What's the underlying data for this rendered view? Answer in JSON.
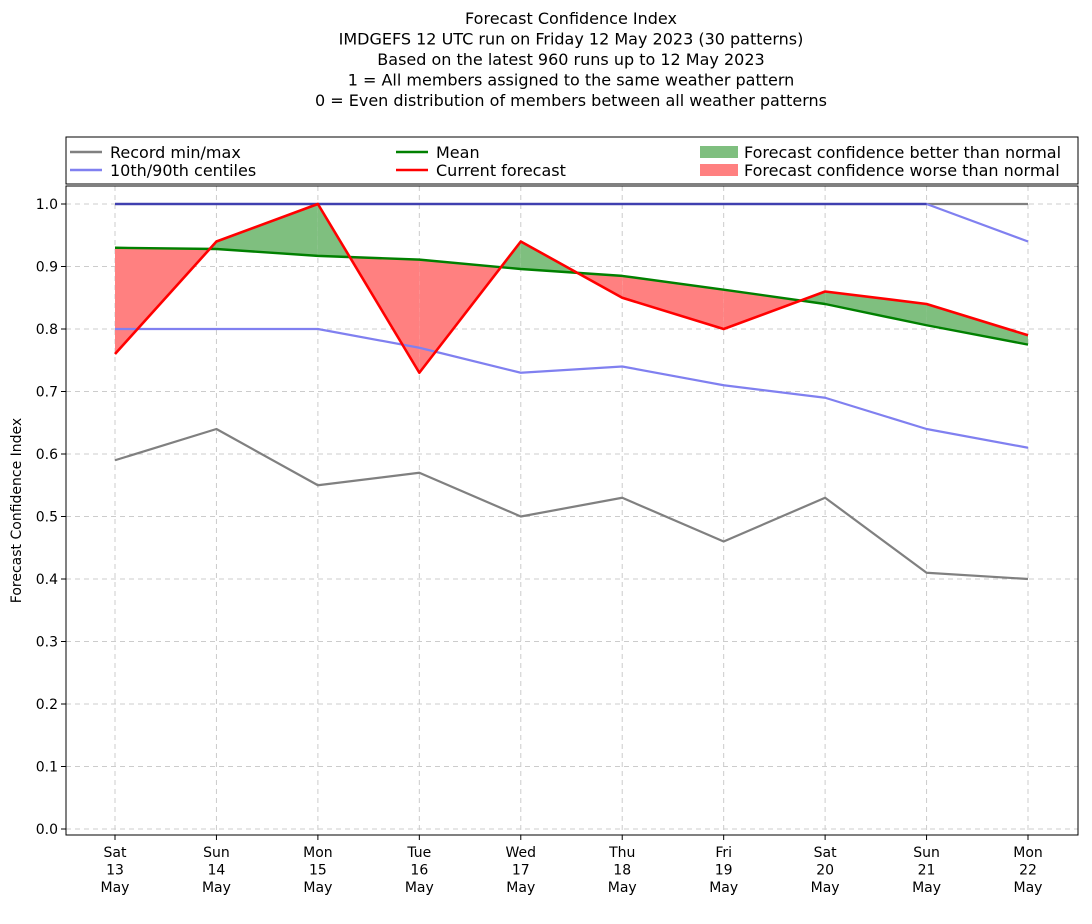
{
  "chart_data": {
    "type": "line",
    "title_lines": [
      "Forecast Confidence Index",
      "IMDGEFS 12 UTC run on Friday 12 May 2023 (30 patterns)",
      "Based on the latest 960 runs up to 12 May 2023",
      "1 = All members assigned to the same weather pattern",
      "0 = Even distribution of members between all weather patterns"
    ],
    "ylabel": "Forecast Confidence Index",
    "ylim": [
      0.0,
      1.0
    ],
    "yticks": [
      "0.0",
      "0.1",
      "0.2",
      "0.3",
      "0.4",
      "0.5",
      "0.6",
      "0.7",
      "0.8",
      "0.9",
      "1.0"
    ],
    "grid": true,
    "legend_position": "top",
    "categories": [
      {
        "day": "Sat",
        "date": "13",
        "month": "May"
      },
      {
        "day": "Sun",
        "date": "14",
        "month": "May"
      },
      {
        "day": "Mon",
        "date": "15",
        "month": "May"
      },
      {
        "day": "Tue",
        "date": "16",
        "month": "May"
      },
      {
        "day": "Wed",
        "date": "17",
        "month": "May"
      },
      {
        "day": "Thu",
        "date": "18",
        "month": "May"
      },
      {
        "day": "Fri",
        "date": "19",
        "month": "May"
      },
      {
        "day": "Sat",
        "date": "20",
        "month": "May"
      },
      {
        "day": "Sun",
        "date": "21",
        "month": "May"
      },
      {
        "day": "Mon",
        "date": "22",
        "month": "May"
      }
    ],
    "series": {
      "record_min": [
        0.59,
        0.64,
        0.55,
        0.57,
        0.5,
        0.53,
        0.46,
        0.53,
        0.41,
        0.4
      ],
      "record_max": [
        1.0,
        1.0,
        1.0,
        1.0,
        1.0,
        1.0,
        1.0,
        1.0,
        1.0,
        1.0
      ],
      "centile_10": [
        0.8,
        0.8,
        0.8,
        0.77,
        0.73,
        0.74,
        0.71,
        0.69,
        0.64,
        0.61
      ],
      "centile_90": [
        1.0,
        1.0,
        1.0,
        1.0,
        1.0,
        1.0,
        1.0,
        1.0,
        1.0,
        0.94
      ],
      "mean": [
        0.93,
        0.928,
        0.917,
        0.911,
        0.896,
        0.885,
        0.863,
        0.84,
        0.806,
        0.775
      ],
      "current": [
        0.76,
        0.94,
        1.0,
        0.73,
        0.94,
        0.85,
        0.8,
        0.86,
        0.84,
        0.79
      ]
    },
    "legend": [
      {
        "key": "record",
        "label": "Record min/max",
        "kind": "line"
      },
      {
        "key": "centiles",
        "label": "10th/90th centiles",
        "kind": "line"
      },
      {
        "key": "mean",
        "label": "Mean",
        "kind": "line"
      },
      {
        "key": "current",
        "label": "Current forecast",
        "kind": "line"
      },
      {
        "key": "better",
        "label": "Forecast confidence better than normal",
        "kind": "patch"
      },
      {
        "key": "worse",
        "label": "Forecast confidence worse than normal",
        "kind": "patch"
      }
    ],
    "colors": {
      "record": "#808080",
      "centiles": "#8080f0",
      "centiles_overlap": "#4040b0",
      "mean": "#008000",
      "current": "#ff0000",
      "better": "#7fbf7f",
      "worse": "#ff8080",
      "grid": "#cccccc"
    }
  }
}
